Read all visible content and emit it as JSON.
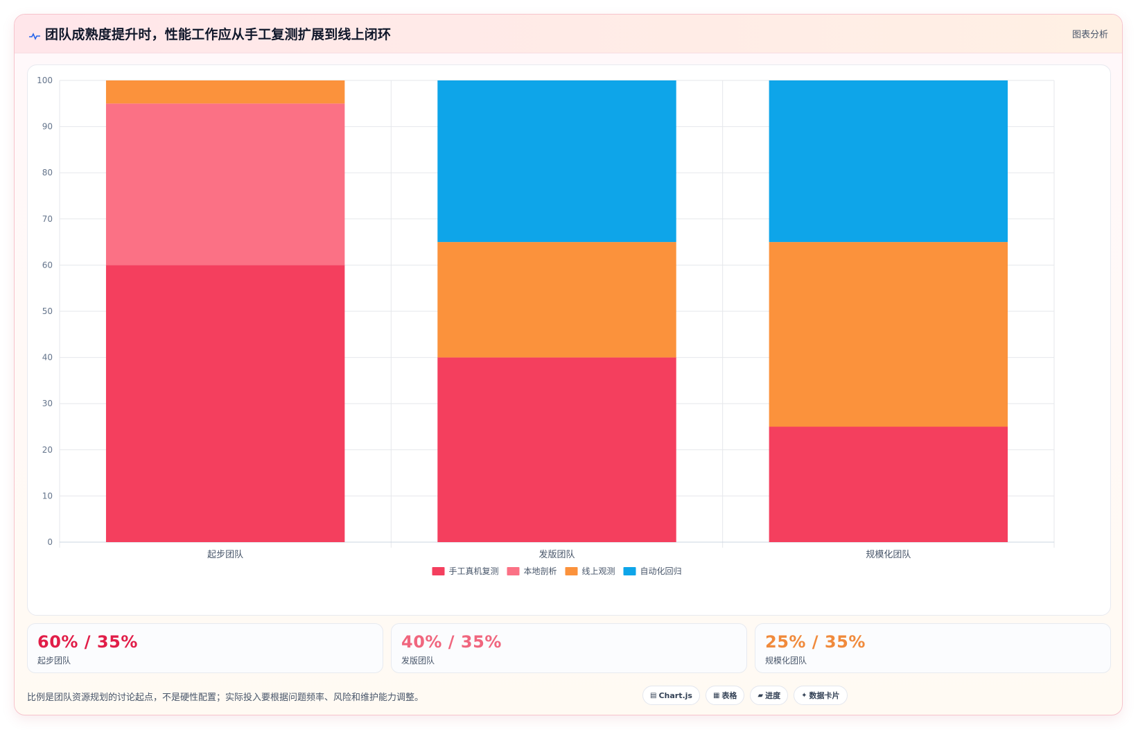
{
  "header": {
    "title": "团队成熟度提升时，性能工作应从手工复测扩展到线上闭环",
    "tag": "图表分析"
  },
  "colors": {
    "manual": "#f43f5e",
    "local": "#fb7185",
    "online": "#fb923c",
    "auto": "#0ea5e9"
  },
  "chart_data": {
    "type": "bar",
    "stacked": true,
    "categories": [
      "起步团队",
      "发版团队",
      "规模化团队"
    ],
    "series": [
      {
        "name": "手工真机复测",
        "color": "#f43f5e",
        "values": [
          60,
          40,
          25
        ]
      },
      {
        "name": "本地剖析",
        "color": "#fb7185",
        "values": [
          35,
          0,
          0
        ]
      },
      {
        "name": "线上观测",
        "color": "#fb923c",
        "values": [
          5,
          25,
          40
        ]
      },
      {
        "name": "自动化回归",
        "color": "#0ea5e9",
        "values": [
          0,
          35,
          35
        ]
      }
    ],
    "ylim": [
      0,
      100
    ],
    "yticks": [
      "0",
      "10",
      "20",
      "30",
      "40",
      "50",
      "60",
      "70",
      "80",
      "90",
      "100"
    ],
    "grid": true,
    "legend": "bottom-center"
  },
  "stats": [
    {
      "value": "60% / 35%",
      "label": "起步团队",
      "color": "#e11d48"
    },
    {
      "value": "40% / 35%",
      "label": "发版团队",
      "color": "#f0667e"
    },
    {
      "value": "25% / 35%",
      "label": "规模化团队",
      "color": "#f08a3c"
    }
  ],
  "footer": {
    "note": "比例是团队资源规划的讨论起点，不是硬性配置；实际投入要根据问题频率、风险和维护能力调整。",
    "chips": [
      {
        "icon": "▤",
        "label": "Chart.js",
        "icon_name": "chart-icon"
      },
      {
        "icon": "▦",
        "label": "表格",
        "icon_name": "table-icon"
      },
      {
        "icon": "▰",
        "label": "进度",
        "icon_name": "progress-icon"
      },
      {
        "icon": "✦",
        "label": "数据卡片",
        "icon_name": "sparkle-icon"
      }
    ]
  }
}
